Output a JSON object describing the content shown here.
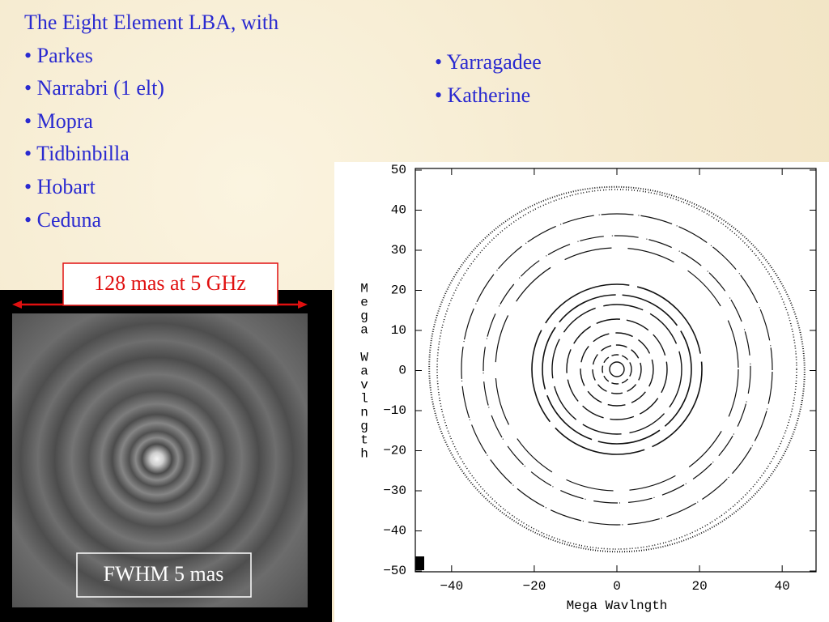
{
  "slide": {
    "left_list": {
      "heading": "The Eight Element LBA, with",
      "items": [
        "• Parkes",
        "• Narrabri (1 elt)",
        "• Mopra",
        "• Tidbinbilla",
        "• Hobart",
        "• Ceduna"
      ]
    },
    "right_list": {
      "items": [
        "• Yarragadee",
        "• Katherine"
      ]
    },
    "scale_label": "128 mas at 5 GHz",
    "beam_label": "FWHM 5 mas"
  },
  "uv_plot": {
    "x_label": "Mega Wavlngth",
    "y_label": "Mega Wavlngth",
    "xlim": [
      -48,
      48
    ],
    "ylim": [
      -50,
      50
    ],
    "xticks": [
      {
        "value": -40,
        "label": "−40"
      },
      {
        "value": -20,
        "label": "−20"
      },
      0,
      20,
      40
    ],
    "yticks": [
      50,
      40,
      30,
      20,
      10,
      0,
      {
        "value": -10,
        "label": "−10"
      },
      {
        "value": -20,
        "label": "−20"
      },
      {
        "value": -30,
        "label": "−30"
      },
      {
        "value": -40,
        "label": "−40"
      },
      {
        "value": -50,
        "label": "−50"
      }
    ]
  }
}
